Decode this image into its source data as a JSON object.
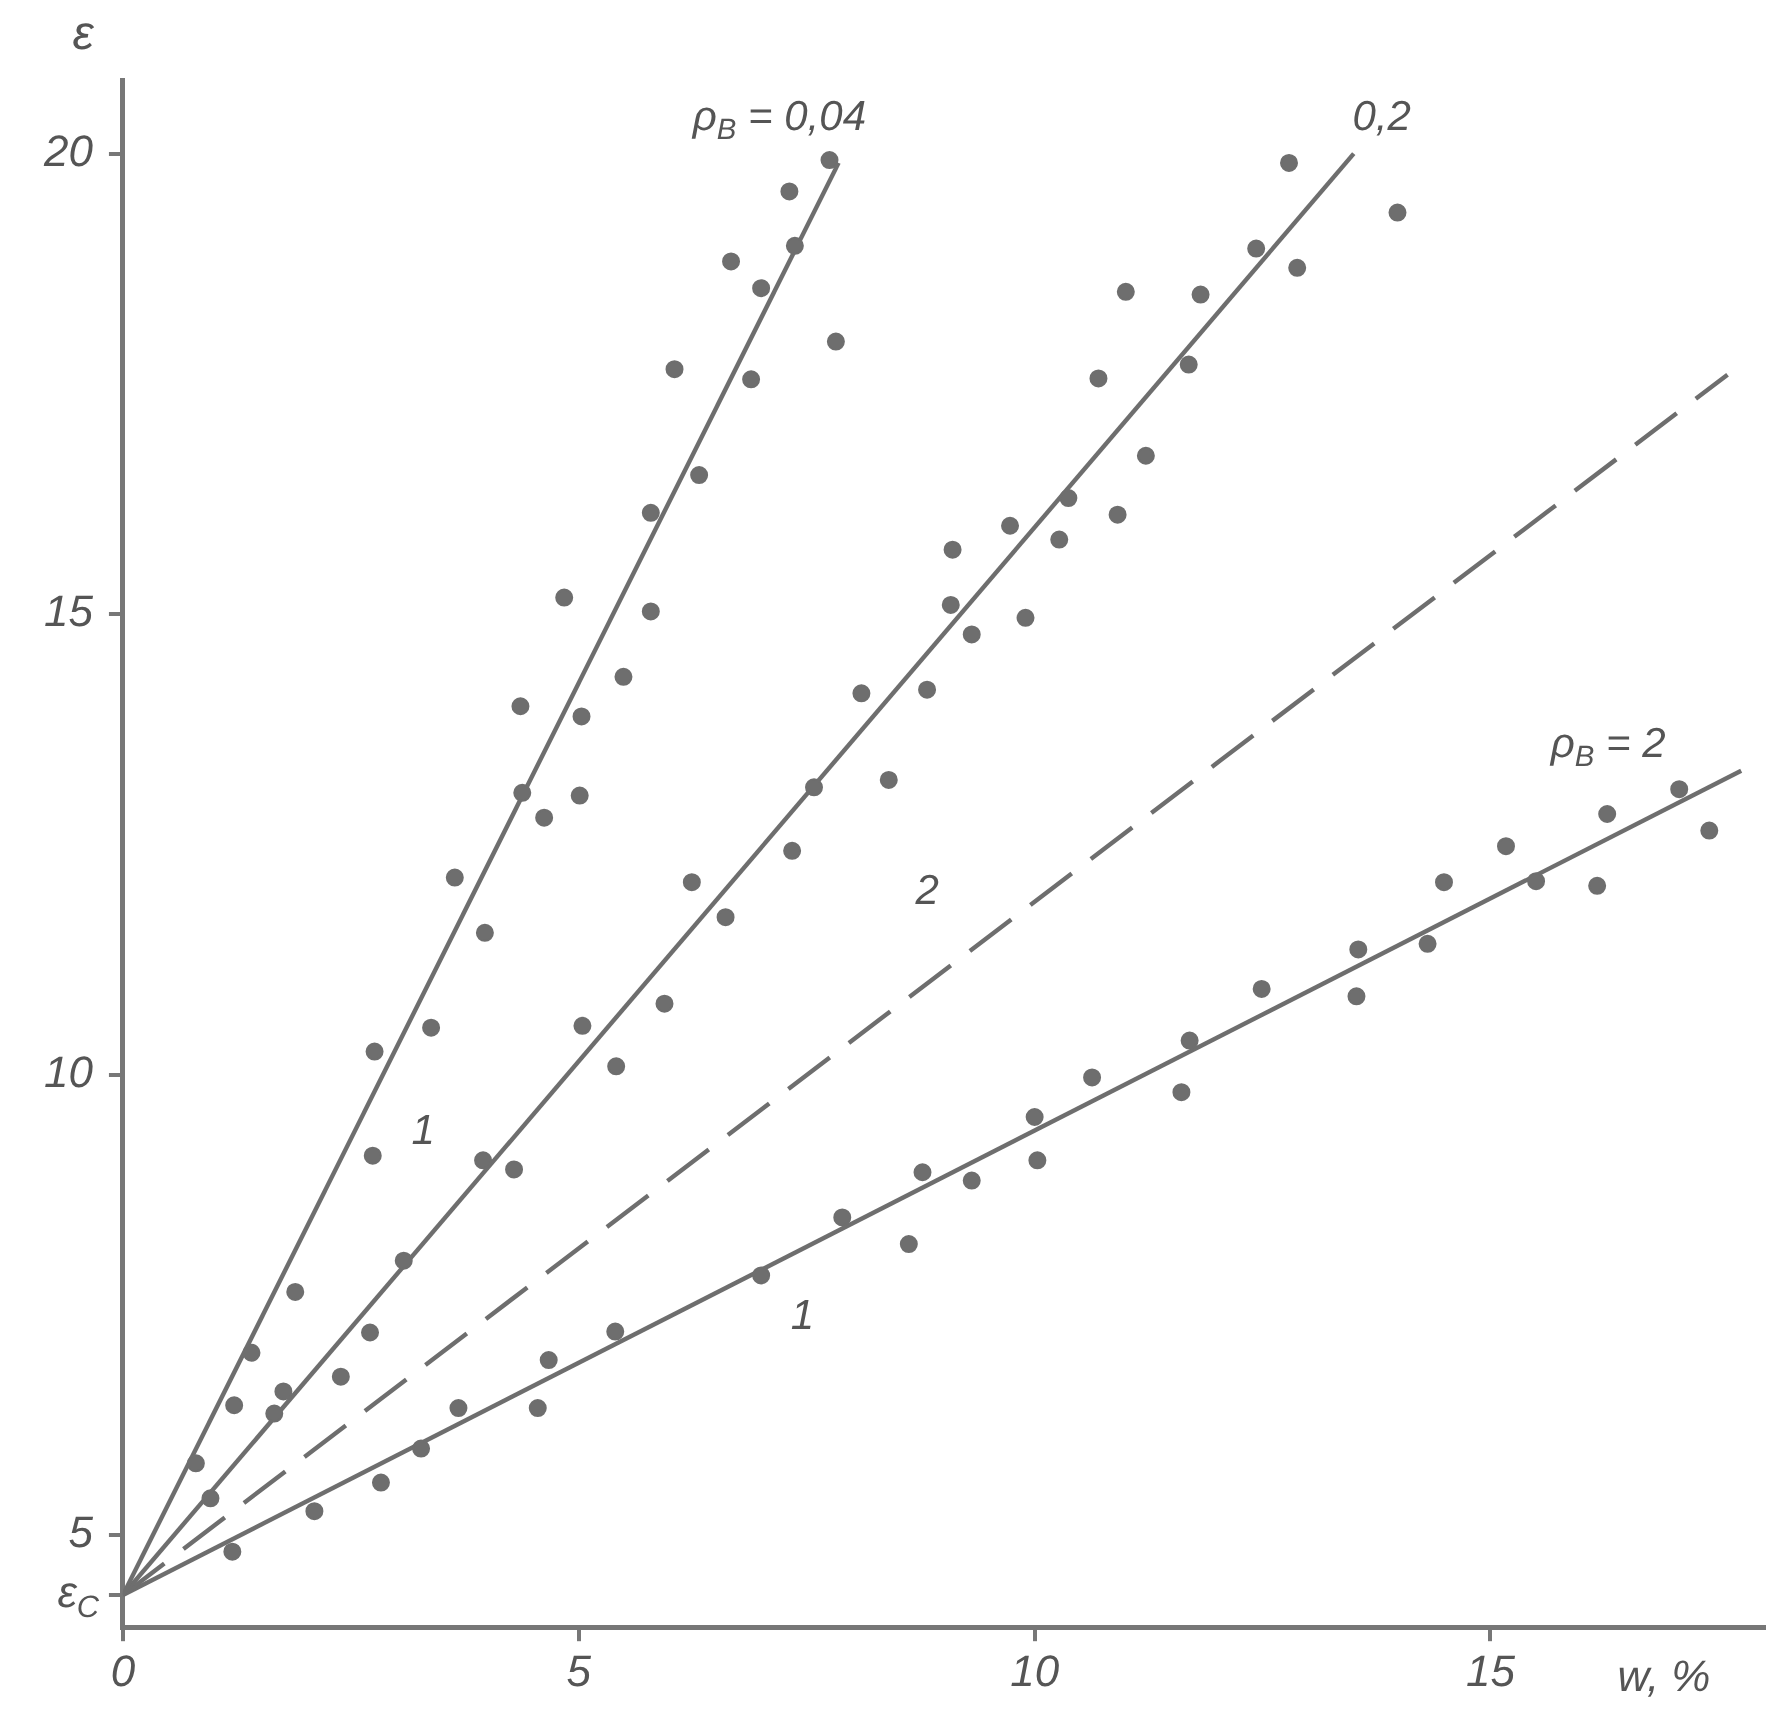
{
  "chart_data": {
    "type": "scatter",
    "xlabel": "w, %",
    "ylabel": "ε",
    "xlim": [
      0,
      18
    ],
    "ylim": [
      4,
      20.8
    ],
    "xticks": [
      0,
      5,
      10,
      15
    ],
    "yticks": [
      {
        "value": 4.35,
        "label": "ε$_{C}$"
      },
      5,
      10,
      15,
      20
    ],
    "grid": false,
    "legend": false,
    "marker": "circle",
    "series": [
      {
        "color": "#6e6e6e",
        "x": [
          7.75,
          7.31,
          7.37,
          6.67,
          7.0,
          7.82,
          6.05,
          6.89,
          6.32,
          5.79,
          4.84,
          5.79,
          5.49,
          4.36,
          5.03,
          4.38,
          5.01,
          4.62,
          3.64,
          3.97,
          3.38,
          2.76,
          2.74,
          1.89,
          1.41,
          1.22,
          0.8
        ],
        "values": [
          19.93,
          19.59,
          19.0,
          18.83,
          18.54,
          17.96,
          17.66,
          17.55,
          16.51,
          16.1,
          15.18,
          15.03,
          14.32,
          14.0,
          13.89,
          13.06,
          13.03,
          12.79,
          12.14,
          11.54,
          10.51,
          10.25,
          9.12,
          7.64,
          6.98,
          6.41,
          5.78
        ]
      },
      {
        "color": "#6e6e6e",
        "x": [
          12.79,
          13.98,
          12.43,
          12.88,
          11.0,
          11.82,
          11.69,
          10.7,
          11.22,
          10.37,
          10.91,
          9.73,
          9.1,
          10.27,
          9.08,
          9.31,
          9.9,
          8.82,
          8.1,
          8.4,
          7.58,
          7.34,
          6.24,
          6.61,
          5.94,
          5.04,
          5.41,
          3.95,
          4.29,
          3.08,
          2.71,
          2.39,
          1.76,
          1.66,
          0.96
        ],
        "values": [
          19.9,
          19.36,
          18.97,
          18.76,
          18.5,
          18.47,
          17.71,
          17.56,
          16.72,
          16.26,
          16.08,
          15.96,
          15.7,
          15.81,
          15.1,
          14.78,
          14.96,
          14.18,
          14.14,
          13.2,
          13.12,
          12.43,
          12.09,
          11.71,
          10.77,
          10.53,
          10.09,
          9.07,
          8.97,
          7.98,
          7.2,
          6.72,
          6.56,
          6.32,
          5.4
        ]
      },
      {
        "color": "#6e6e6e",
        "x": [
          17.07,
          16.28,
          17.4,
          15.17,
          14.49,
          15.5,
          16.17,
          13.55,
          14.31,
          13.53,
          12.49,
          11.7,
          11.61,
          10.63,
          10.0,
          10.03,
          8.77,
          9.31,
          7.89,
          8.62,
          7.0,
          5.4,
          4.67,
          4.55,
          3.68,
          3.27,
          2.83,
          2.1,
          1.2
        ],
        "values": [
          13.1,
          12.83,
          12.65,
          12.48,
          12.09,
          12.1,
          12.05,
          11.36,
          11.42,
          10.85,
          10.93,
          10.37,
          9.81,
          9.97,
          9.54,
          9.07,
          8.94,
          8.85,
          8.45,
          8.16,
          7.82,
          7.21,
          6.9,
          6.38,
          6.38,
          5.94,
          5.57,
          5.26,
          4.82
        ]
      },
      {
        "type": "line",
        "color": "#6e6e6e",
        "marker": "none",
        "line_style": "solid",
        "x": [
          0,
          7.85
        ],
        "values": [
          4.35,
          19.9
        ]
      },
      {
        "type": "line",
        "color": "#6e6e6e",
        "marker": "none",
        "line_style": "solid",
        "x": [
          0,
          13.5
        ],
        "values": [
          4.35,
          20
        ]
      },
      {
        "type": "line",
        "color": "#6e6e6e",
        "marker": "none",
        "line_style": "dashed",
        "x": [
          0,
          17.6
        ],
        "values": [
          4.35,
          17.6
        ]
      },
      {
        "type": "line",
        "color": "#6e6e6e",
        "marker": "none",
        "line_style": "solid",
        "x": [
          0,
          17.75
        ],
        "values": [
          4.35,
          13.3
        ]
      }
    ],
    "annotations": [
      "ρ$_{B}$ = 0,04",
      "0,2",
      "ρ$_{B}$ = 2",
      "1",
      "1",
      "2"
    ]
  }
}
